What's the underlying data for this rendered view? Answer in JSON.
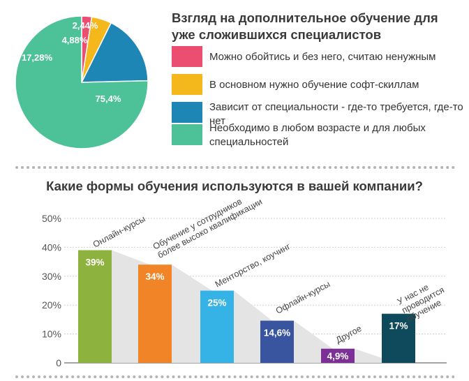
{
  "chart_data": [
    {
      "type": "pie",
      "title": "Взгляд на дополнительное обучение для уже сложившихся специалистов",
      "slices": [
        {
          "label": "Можно обойтись и без него, считаю ненужным",
          "value": 2.44,
          "value_label": "2,44%",
          "color": "#ec4e72"
        },
        {
          "label": "В основном нужно обучение софт-скиллам",
          "value": 4.88,
          "value_label": "4,88%",
          "color": "#f5b81c"
        },
        {
          "label": "Зависит от специальности - где-то требуется, где-то нет",
          "value": 17.28,
          "value_label": "17,28%",
          "color": "#1d86b5"
        },
        {
          "label": "Необходимо в любом возрасте и для любых специальностей",
          "value": 75.4,
          "value_label": "75,4%",
          "color": "#4dc198"
        }
      ]
    },
    {
      "type": "bar",
      "title": "Какие формы обучения используются в вашей компании?",
      "categories": [
        "Онлайн-курсы",
        "Обучение у сотрудников более высоко квалификации",
        "Менторство, коучинг",
        "Офлайн-курсы",
        "Другое",
        "У нас не проводится обучение"
      ],
      "values": [
        39,
        34,
        25,
        14.6,
        4.9,
        17
      ],
      "value_labels": [
        "39%",
        "34%",
        "25%",
        "14,6%",
        "4,9%",
        "17%"
      ],
      "colors": [
        "#8db23e",
        "#f18426",
        "#36b3e6",
        "#3a55a0",
        "#7c2f94",
        "#0e4a5c"
      ],
      "ylim": [
        0,
        50
      ],
      "yticks": [
        "0",
        "10%",
        "20%",
        "30%",
        "40%",
        "50%"
      ],
      "grid": true
    }
  ]
}
